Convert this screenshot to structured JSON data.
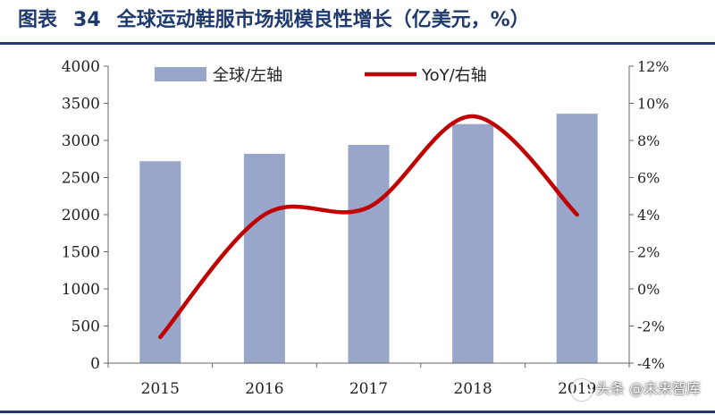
{
  "header": {
    "label": "图表",
    "number": "34",
    "title": "全球运动鞋服市场规模良性增长（亿美元，%）"
  },
  "watermark": {
    "text": "头条 @未来智库"
  },
  "colors": {
    "bar": "#97a6c9",
    "line": "#c00000",
    "rule": "#1f3a6e"
  },
  "chart_data": {
    "type": "bar",
    "categories": [
      "2015",
      "2016",
      "2017",
      "2018",
      "2019"
    ],
    "series": [
      {
        "name": "全球/左轴",
        "type": "bar",
        "axis": "left",
        "values": [
          2720,
          2820,
          2940,
          3220,
          3360
        ]
      },
      {
        "name": "YoY/右轴",
        "type": "line",
        "axis": "right",
        "smooth": true,
        "values": [
          -2.6,
          4.0,
          4.4,
          9.3,
          4.0
        ]
      }
    ],
    "y_left": {
      "lim": [
        0,
        4000
      ],
      "ticks": [
        "0",
        "500",
        "1000",
        "1500",
        "2000",
        "2500",
        "3000",
        "3500",
        "4000"
      ]
    },
    "y_right": {
      "lim": [
        -4,
        12
      ],
      "ticks": [
        "-4%",
        "-2%",
        "0%",
        "2%",
        "4%",
        "6%",
        "8%",
        "10%",
        "12%"
      ]
    },
    "grid": false,
    "legend": "top"
  }
}
